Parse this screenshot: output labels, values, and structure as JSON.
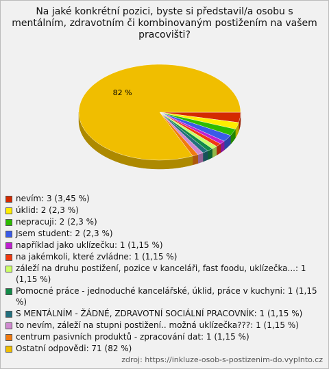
{
  "chart_data": {
    "type": "pie",
    "title": "Na jaké konkrétní pozici, byste si představil/a osobu s mentálním, zdravotním či kombinovaným postižením na vašem pracovišti?",
    "categories": [
      "nevím: 3 (3,45 %)",
      "úklid: 2 (2,3 %)",
      "nepracuji: 2 (2,3 %)",
      "Jsem student: 2 (2,3 %)",
      "například jako uklízečku: 1 (1,15 %)",
      "na jakémkoli, které zvládne: 1 (1,15 %)",
      "záleží na druhu postižení, pozice v kanceláři, fast foodu, uklízečka...: 1 (1,15 %)",
      "Pomocné práce - jednoduché kancelářské, úklid, práce v kuchyni: 1 (1,15 %)",
      " S MENTÁLNÍM - ŽÁDNÉ, ZDRAVOTNÍ SOCIÁLNÍ PRACOVNÍK: 1 (1,15 %)",
      "to nevím, záleží na stupni postižení.. možná uklízečka???: 1 (1,15 %)",
      "centrum pasivních produktů - zpracování dat: 1 (1,15 %)",
      "Ostatní odpovědi: 71 (82 %)"
    ],
    "values": [
      3.45,
      2.3,
      2.3,
      2.3,
      1.15,
      1.15,
      1.15,
      1.15,
      1.15,
      1.15,
      1.15,
      82
    ],
    "value_labels": [
      null,
      null,
      null,
      null,
      null,
      null,
      null,
      null,
      null,
      null,
      null,
      "82 %"
    ],
    "colors": [
      "#d42a00",
      "#ffee00",
      "#2dbb00",
      "#3a5be8",
      "#c020d0",
      "#f03a10",
      "#ccff66",
      "#128a48",
      "#23707e",
      "#d08ad0",
      "#f07a10",
      "#f0be00"
    ]
  },
  "source": "zdroj: https://inkluze-osob-s-postizenim-do.vyplnto.cz"
}
